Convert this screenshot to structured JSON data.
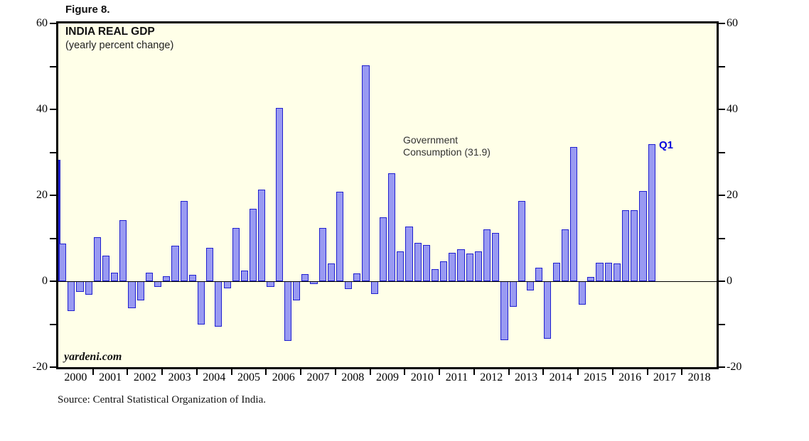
{
  "figure_label": "Figure 8.",
  "chart": {
    "title": "INDIA REAL GDP",
    "subtitle": "(yearly percent change)",
    "watermark": "yardeni.com",
    "annotation_line1": "Government",
    "annotation_line2": "Consumption (31.9)",
    "latest_label": "Q1",
    "colors": {
      "plot_background": "#FFFFE8",
      "bar_fill": "#999af2",
      "bar_border": "#2020d0",
      "latest_label_color": "#0000dd",
      "frame": "#000000"
    }
  },
  "source_line": "Source: Central Statistical Organization of India.",
  "chart_data": {
    "type": "bar",
    "title": "INDIA REAL GDP",
    "subtitle": "(yearly percent change)",
    "series_name": "Government Consumption",
    "latest_value": 31.9,
    "latest_quarter": "Q1",
    "ylim": [
      -20,
      60
    ],
    "ytick_labeled": [
      -20,
      0,
      20,
      40,
      60
    ],
    "ytick_minor_step": 10,
    "grid": false,
    "legend_position": "none",
    "x_year_labels": [
      "2000",
      "2001",
      "2002",
      "2003",
      "2004",
      "2005",
      "2006",
      "2007",
      "2008",
      "2009",
      "2010",
      "2011",
      "2012",
      "2013",
      "2014",
      "2015",
      "2016",
      "2017",
      "2018"
    ],
    "x_axis_span_years": 19,
    "partial_first_bar": {
      "quarter": "1999 Q4",
      "value": 28.3
    },
    "quarters": [
      "2000 Q1",
      "2000 Q2",
      "2000 Q3",
      "2000 Q4",
      "2001 Q1",
      "2001 Q2",
      "2001 Q3",
      "2001 Q4",
      "2002 Q1",
      "2002 Q2",
      "2002 Q3",
      "2002 Q4",
      "2003 Q1",
      "2003 Q2",
      "2003 Q3",
      "2003 Q4",
      "2004 Q1",
      "2004 Q2",
      "2004 Q3",
      "2004 Q4",
      "2005 Q1",
      "2005 Q2",
      "2005 Q3",
      "2005 Q4",
      "2006 Q1",
      "2006 Q2",
      "2006 Q3",
      "2006 Q4",
      "2007 Q1",
      "2007 Q2",
      "2007 Q3",
      "2007 Q4",
      "2008 Q1",
      "2008 Q2",
      "2008 Q3",
      "2008 Q4",
      "2009 Q1",
      "2009 Q2",
      "2009 Q3",
      "2009 Q4",
      "2010 Q1",
      "2010 Q2",
      "2010 Q3",
      "2010 Q4",
      "2011 Q1",
      "2011 Q2",
      "2011 Q3",
      "2011 Q4",
      "2012 Q1",
      "2012 Q2",
      "2012 Q3",
      "2012 Q4",
      "2013 Q1",
      "2013 Q2",
      "2013 Q3",
      "2013 Q4",
      "2014 Q1",
      "2014 Q2",
      "2014 Q3",
      "2014 Q4",
      "2015 Q1",
      "2015 Q2",
      "2015 Q3",
      "2015 Q4",
      "2016 Q1",
      "2016 Q2",
      "2016 Q3",
      "2016 Q4",
      "2017 Q1"
    ],
    "values": [
      8.8,
      -7.0,
      -2.4,
      -3.1,
      10.2,
      6.0,
      2.0,
      14.2,
      -6.3,
      -4.5,
      2.0,
      -1.4,
      1.2,
      8.3,
      18.6,
      1.5,
      -10.1,
      7.8,
      -10.6,
      -1.6,
      12.4,
      2.4,
      16.9,
      21.3,
      -1.4,
      40.4,
      -13.9,
      -4.4,
      1.6,
      -0.7,
      12.4,
      4.1,
      20.9,
      -1.8,
      1.8,
      50.3,
      -3.0,
      14.9,
      25.2,
      7.0,
      12.8,
      9.0,
      8.4,
      2.8,
      4.6,
      6.6,
      7.4,
      6.4,
      7.0,
      12.0,
      11.2,
      -13.7,
      -5.9,
      18.7,
      -2.2,
      3.1,
      -13.4,
      4.3,
      12.1,
      31.2,
      -5.4,
      1.0,
      4.3,
      4.3,
      4.1,
      16.5,
      16.5,
      21.0,
      31.9
    ]
  }
}
